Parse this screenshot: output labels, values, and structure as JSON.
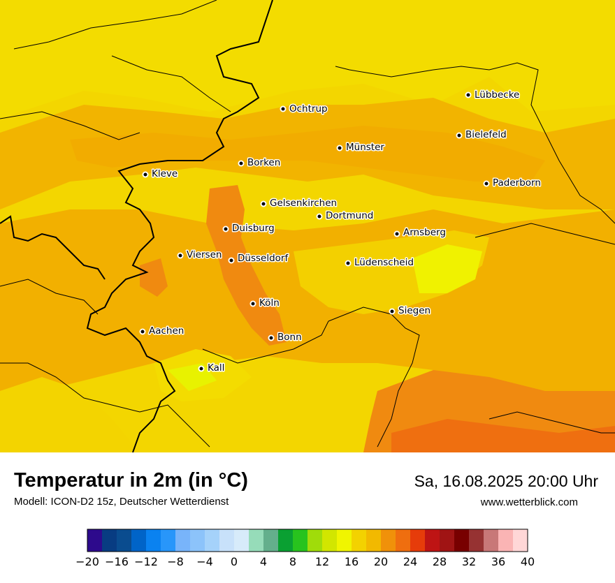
{
  "map": {
    "cities": [
      {
        "name": "Lübbecke"
      },
      {
        "name": "Ochtrup"
      },
      {
        "name": "Bielefeld"
      },
      {
        "name": "Münster"
      },
      {
        "name": "Borken"
      },
      {
        "name": "Kleve"
      },
      {
        "name": "Paderborn"
      },
      {
        "name": "Gelsenkirchen"
      },
      {
        "name": "Dortmund"
      },
      {
        "name": "Duisburg"
      },
      {
        "name": "Arnsberg"
      },
      {
        "name": "Viersen"
      },
      {
        "name": "Düsseldorf"
      },
      {
        "name": "Lüdenscheid"
      },
      {
        "name": "Köln"
      },
      {
        "name": "Siegen"
      },
      {
        "name": "Aachen"
      },
      {
        "name": "Bonn"
      },
      {
        "name": "Kall"
      }
    ],
    "colors": {
      "t14_16": "#f3e600",
      "t16_18": "#f5c400",
      "t18_20": "#f2ad00",
      "t20_22": "#f08a10",
      "t22_24": "#ef6f10",
      "t24_26": "#eb5a10",
      "t12_14": "#e6f200"
    }
  },
  "footer": {
    "title": "Temperatur in 2m (in °C)",
    "model": "Modell: ICON-D2 15z, Deutscher Wetterdienst",
    "datetime": "Sa, 16.08.2025 20:00 Uhr",
    "website": "www.wetterblick.com"
  },
  "legend": {
    "min": -20,
    "max": 40,
    "step": 2,
    "tick_labels": [
      "−20",
      "−16",
      "−12",
      "−8",
      "−4",
      "0",
      "4",
      "8",
      "12",
      "16",
      "20",
      "24",
      "28",
      "32",
      "36",
      "40"
    ],
    "colors": [
      "#2d0a8c",
      "#083c82",
      "#0a4c8f",
      "#0064c8",
      "#0a82f0",
      "#2896fa",
      "#78b4fa",
      "#8cc3fa",
      "#a5d2fa",
      "#c8e1fa",
      "#d7ebfa",
      "#96dcb9",
      "#64af8c",
      "#0aa032",
      "#28c31e",
      "#a0dc0a",
      "#d2e600",
      "#f0f500",
      "#f3d200",
      "#f2b900",
      "#f0910a",
      "#ef6e0f",
      "#e63c0a",
      "#be1414",
      "#a01414",
      "#780000",
      "#963232",
      "#c87878",
      "#fab4b4",
      "#ffd7d7"
    ]
  }
}
